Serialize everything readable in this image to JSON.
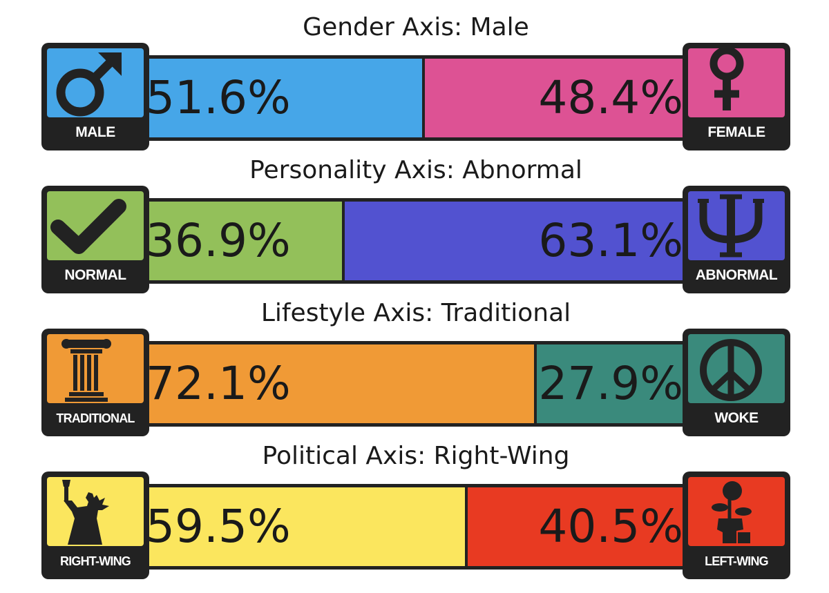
{
  "chart_data": {
    "type": "bar",
    "axes": [
      {
        "title": "Gender Axis: Male",
        "left": {
          "label": "MALE",
          "value": 51.6,
          "value_label": "51.6%",
          "color": "#46a6e8",
          "icon": "male-symbol-icon"
        },
        "right": {
          "label": "FEMALE",
          "value": 48.4,
          "value_label": "48.4%",
          "color": "#dd5294",
          "icon": "female-symbol-icon"
        }
      },
      {
        "title": "Personality Axis: Abnormal",
        "left": {
          "label": "NORMAL",
          "value": 36.9,
          "value_label": "36.9%",
          "color": "#93c05a",
          "icon": "checkmark-icon"
        },
        "right": {
          "label": "ABNORMAL",
          "value": 63.1,
          "value_label": "63.1%",
          "color": "#5252d0",
          "icon": "psi-icon"
        }
      },
      {
        "title": "Lifestyle Axis: Traditional",
        "left": {
          "label": "TRADITIONAL",
          "value": 72.1,
          "value_label": "72.1%",
          "color": "#f09a36",
          "icon": "column-icon"
        },
        "right": {
          "label": "WOKE",
          "value": 27.9,
          "value_label": "27.9%",
          "color": "#3a8a7c",
          "icon": "peace-sign-icon"
        }
      },
      {
        "title": "Political Axis: Right-Wing",
        "left": {
          "label": "RIGHT-WING",
          "value": 59.5,
          "value_label": "59.5%",
          "color": "#fbe65e",
          "icon": "statue-of-liberty-icon"
        },
        "right": {
          "label": "LEFT-WING",
          "value": 40.5,
          "value_label": "40.5%",
          "color": "#e83a22",
          "icon": "fist-and-rose-icon"
        }
      }
    ]
  }
}
